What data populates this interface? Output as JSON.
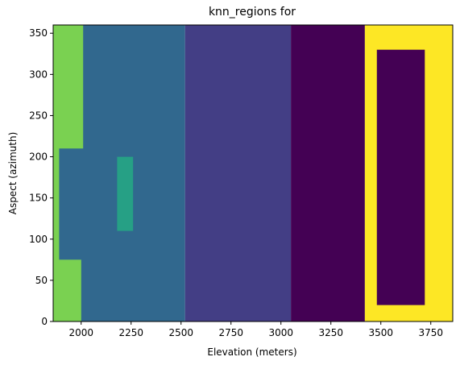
{
  "chart_data": {
    "type": "heatmap",
    "title": "knn_regions for",
    "xlabel": "Elevation (meters)",
    "ylabel": "Aspect (azimuth)",
    "xlim": [
      1860,
      3860
    ],
    "ylim": [
      0,
      360
    ],
    "xticks": [
      2000,
      2250,
      2500,
      2750,
      3000,
      3250,
      3500,
      3750
    ],
    "yticks": [
      0,
      50,
      100,
      150,
      200,
      250,
      300,
      350
    ],
    "grid": false,
    "legend": "none",
    "colors": {
      "class_lightgreen": "#7ad151",
      "class_teal": "#31688e",
      "class_cyan": "#26a085",
      "class_indigo": "#433e85",
      "class_purple": "#440154",
      "class_yellow": "#fde725"
    },
    "regions": [
      {
        "class": "class_teal",
        "x": [
          1860,
          2520
        ],
        "y": [
          0,
          360
        ]
      },
      {
        "class": "class_lightgreen",
        "x": [
          1860,
          1890
        ],
        "y": [
          0,
          360
        ]
      },
      {
        "class": "class_lightgreen",
        "x": [
          1880,
          2000
        ],
        "y": [
          0,
          75
        ]
      },
      {
        "class": "class_lightgreen",
        "x": [
          1880,
          2010
        ],
        "y": [
          210,
          360
        ]
      },
      {
        "class": "class_cyan",
        "x": [
          2180,
          2260
        ],
        "y": [
          110,
          200
        ]
      },
      {
        "class": "class_indigo",
        "x": [
          2520,
          3050
        ],
        "y": [
          0,
          360
        ]
      },
      {
        "class": "class_purple",
        "x": [
          3050,
          3420
        ],
        "y": [
          0,
          360
        ]
      },
      {
        "class": "class_yellow",
        "x": [
          3420,
          3860
        ],
        "y": [
          0,
          360
        ]
      },
      {
        "class": "class_purple",
        "x": [
          3480,
          3720
        ],
        "y": [
          20,
          330
        ]
      }
    ]
  }
}
